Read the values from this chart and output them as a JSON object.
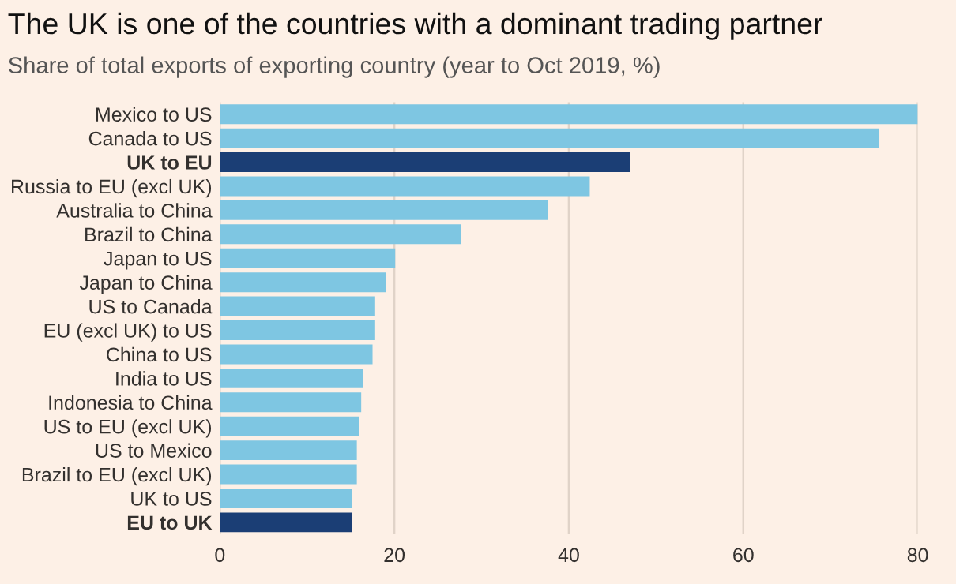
{
  "chart_data": {
    "type": "bar",
    "orientation": "horizontal",
    "title": "The UK is one of the countries with a dominant trading partner",
    "subtitle": "Share of total exports of exporting country (year to Oct 2019, %)",
    "categories": [
      "Mexico to US",
      "Canada to US",
      "UK to EU",
      "Russia to EU (excl UK)",
      "Australia to China",
      "Brazil to China",
      "Japan to US",
      "Japan to China",
      "US to Canada",
      "EU (excl UK) to US",
      "China to US",
      "India to US",
      "Indonesia to China",
      "US to EU (excl UK)",
      "US to Mexico",
      "Brazil to EU (excl UK)",
      "UK to US",
      "EU to UK"
    ],
    "values": [
      80,
      75.6,
      47.0,
      42.4,
      37.6,
      27.6,
      20.1,
      19.0,
      17.8,
      17.8,
      17.5,
      16.4,
      16.2,
      16.0,
      15.7,
      15.7,
      15.1,
      15.1
    ],
    "colors": [
      "#7ec6e2",
      "#7ec6e2",
      "#1b3e75",
      "#7ec6e2",
      "#7ec6e2",
      "#7ec6e2",
      "#7ec6e2",
      "#7ec6e2",
      "#7ec6e2",
      "#7ec6e2",
      "#7ec6e2",
      "#7ec6e2",
      "#7ec6e2",
      "#7ec6e2",
      "#7ec6e2",
      "#7ec6e2",
      "#7ec6e2",
      "#1b3e75"
    ],
    "xlim": [
      0,
      80
    ],
    "xticks": [
      0,
      20,
      40,
      60,
      80
    ],
    "grid": "x",
    "legend": false
  }
}
